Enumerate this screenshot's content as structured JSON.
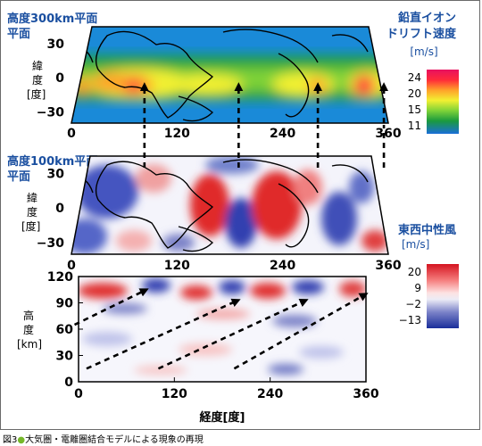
{
  "caption": {
    "prefix": "図3",
    "text": "大気圏・電離圏結合モデルによる現象の再現"
  },
  "colors": {
    "heading": "#1a4fa0",
    "arrow": "#000000"
  },
  "chart_data": [
    {
      "type": "heatmap",
      "title": "高度300km平面",
      "xlabel": "",
      "ylabel": "緯度[度]",
      "x_ticks": [
        0,
        120,
        240,
        360
      ],
      "y_ticks": [
        30,
        0,
        -30
      ],
      "xlim": [
        0,
        360
      ],
      "ylim": [
        -40,
        45
      ],
      "colorbar": {
        "title": "鉛直イオンドリフト速度",
        "unit": "[m/s]",
        "ticks": [
          24,
          20,
          15,
          11
        ]
      },
      "peaks": [
        {
          "lon": 83,
          "lat": 0,
          "value": 24
        },
        {
          "lon": 190,
          "lat": 0,
          "value": 20
        },
        {
          "lon": 280,
          "lat": 0,
          "value": 24
        },
        {
          "lon": 355,
          "lat": 0,
          "value": 24
        }
      ],
      "overlay": "coastlines"
    },
    {
      "type": "heatmap",
      "title": "高度100km平面",
      "xlabel": "",
      "ylabel": "緯度[度]",
      "x_ticks": [
        0,
        120,
        240,
        360
      ],
      "y_ticks": [
        30,
        0,
        -30
      ],
      "xlim": [
        0,
        360
      ],
      "ylim": [
        -40,
        45
      ],
      "colorbar": {
        "title": "東西中性風",
        "unit": "[m/s]",
        "ticks": [
          20,
          9,
          -2,
          -13
        ]
      },
      "overlay": "coastlines"
    },
    {
      "type": "heatmap",
      "title": "",
      "xlabel": "経度[度]",
      "ylabel": "高度[km]",
      "x_ticks": [
        0,
        120,
        240,
        360
      ],
      "y_ticks": [
        120,
        90,
        60,
        30,
        0
      ],
      "xlim": [
        0,
        360
      ],
      "ylim": [
        0,
        120
      ],
      "colorbar": {
        "ticks": [
          20,
          9,
          -2,
          -13
        ]
      },
      "arrows": [
        {
          "from": [
            -5,
            65
          ],
          "to": [
            85,
            105
          ]
        },
        {
          "from": [
            10,
            15
          ],
          "to": [
            200,
            93
          ]
        },
        {
          "from": [
            100,
            15
          ],
          "to": [
            285,
            93
          ]
        },
        {
          "from": [
            195,
            15
          ],
          "to": [
            360,
            100
          ]
        }
      ],
      "link_arrows_lon": [
        83,
        190,
        280,
        355
      ]
    }
  ]
}
